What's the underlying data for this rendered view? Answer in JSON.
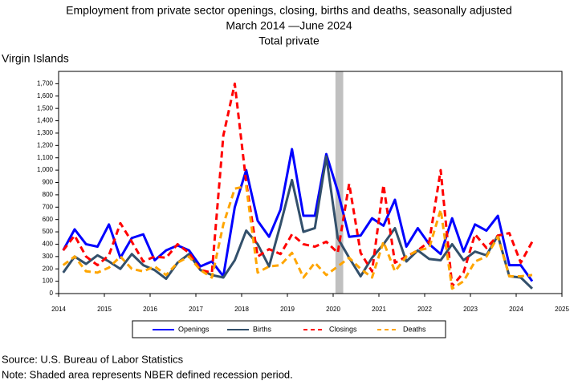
{
  "chart_data": {
    "type": "line",
    "title": "Employment from private sector openings, closing, births and deaths, seasonally adjusted",
    "subtitle": "March 2014 —June 2024",
    "subtitle2": "Total private",
    "region": "Virgin Islands",
    "source": "Source: U.S. Bureau of Labor Statistics",
    "note": "Note: Shaded area represents NBER defined recession period.",
    "recession": [
      2020.05,
      2020.22
    ],
    "xlim": [
      2014,
      2025
    ],
    "xticks": [
      2014,
      2015,
      2016,
      2017,
      2018,
      2019,
      2020,
      2021,
      2022,
      2023,
      2024,
      2025
    ],
    "ylim": [
      0,
      1800
    ],
    "yticks": [
      0,
      100,
      200,
      300,
      400,
      500,
      600,
      700,
      800,
      900,
      {
        "value": 1000,
        "label": "1,000"
      },
      {
        "value": 1100,
        "label": "1,100"
      },
      {
        "value": 1200,
        "label": "1,200"
      },
      {
        "value": 1300,
        "label": "1,300"
      },
      {
        "value": 1400,
        "label": "1,400"
      },
      {
        "value": 1500,
        "label": "1,500"
      },
      {
        "value": 1600,
        "label": "1,600"
      },
      {
        "value": 1700,
        "label": "1,700"
      }
    ],
    "x": [
      2014.1,
      2014.35,
      2014.6,
      2014.85,
      2015.1,
      2015.35,
      2015.6,
      2015.85,
      2016.1,
      2016.35,
      2016.6,
      2016.85,
      2017.1,
      2017.35,
      2017.6,
      2017.85,
      2018.1,
      2018.35,
      2018.6,
      2018.85,
      2019.1,
      2019.35,
      2019.6,
      2019.85,
      2020.1,
      2020.35,
      2020.6,
      2020.85,
      2021.1,
      2021.35,
      2021.6,
      2021.85,
      2022.1,
      2022.35,
      2022.6,
      2022.85,
      2023.1,
      2023.35,
      2023.6,
      2023.85,
      2024.1,
      2024.35
    ],
    "series": [
      {
        "name": "Openings",
        "color": "#0000ff",
        "style": "solid",
        "values": [
          350,
          520,
          400,
          380,
          560,
          290,
          450,
          480,
          270,
          350,
          390,
          350,
          220,
          260,
          140,
          700,
          1000,
          590,
          460,
          680,
          1170,
          630,
          630,
          1130,
          830,
          460,
          470,
          610,
          550,
          760,
          380,
          530,
          400,
          320,
          610,
          340,
          560,
          510,
          630,
          230,
          230,
          100
        ]
      },
      {
        "name": "Births",
        "color": "#33506b",
        "style": "solid",
        "values": [
          170,
          300,
          240,
          310,
          260,
          200,
          320,
          230,
          190,
          120,
          250,
          320,
          190,
          150,
          130,
          270,
          510,
          400,
          220,
          560,
          920,
          500,
          530,
          1110,
          450,
          290,
          140,
          290,
          400,
          530,
          260,
          350,
          280,
          270,
          400,
          270,
          340,
          310,
          470,
          140,
          130,
          40
        ]
      },
      {
        "name": "Closings",
        "color": "#ff0000",
        "style": "dashed",
        "values": [
          350,
          470,
          300,
          230,
          310,
          570,
          420,
          260,
          300,
          290,
          400,
          330,
          190,
          170,
          1280,
          1700,
          900,
          300,
          360,
          320,
          480,
          400,
          380,
          420,
          330,
          890,
          330,
          180,
          880,
          250,
          300,
          350,
          420,
          1000,
          60,
          170,
          480,
          370,
          470,
          490,
          250,
          420
        ]
      },
      {
        "name": "Deaths",
        "color": "#ffa500",
        "style": "dashed",
        "values": [
          230,
          300,
          180,
          170,
          210,
          300,
          200,
          180,
          220,
          150,
          250,
          300,
          190,
          130,
          560,
          850,
          870,
          170,
          220,
          230,
          330,
          130,
          250,
          150,
          220,
          290,
          200,
          130,
          420,
          180,
          300,
          350,
          370,
          680,
          40,
          100,
          260,
          300,
          460,
          140,
          140,
          150
        ]
      }
    ]
  }
}
